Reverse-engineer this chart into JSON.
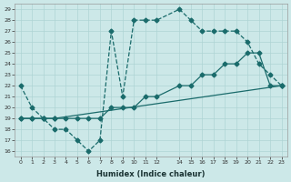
{
  "xlabel": "Humidex (Indice chaleur)",
  "bg_color": "#cce8e8",
  "line_color": "#1a6b6b",
  "grid_color": "#aed4d4",
  "xlim": [
    -0.5,
    23.5
  ],
  "ylim": [
    15.5,
    29.5
  ],
  "xticks": [
    0,
    1,
    2,
    3,
    4,
    5,
    6,
    7,
    8,
    9,
    10,
    11,
    12,
    14,
    15,
    16,
    17,
    18,
    19,
    20,
    21,
    22,
    23
  ],
  "yticks": [
    16,
    17,
    18,
    19,
    20,
    21,
    22,
    23,
    24,
    25,
    26,
    27,
    28,
    29
  ],
  "line1_x": [
    0,
    1,
    2,
    3,
    4,
    5,
    6,
    7,
    8,
    9,
    10,
    11,
    12,
    14,
    15,
    16,
    17,
    18,
    19,
    20,
    21,
    22,
    23
  ],
  "line1_y": [
    22,
    20,
    19,
    18,
    18,
    17,
    16,
    17,
    27,
    21,
    28,
    28,
    28,
    29,
    28,
    27,
    27,
    27,
    27,
    26,
    24,
    23,
    22
  ],
  "line2_x": [
    0,
    1,
    2,
    3,
    4,
    5,
    6,
    7,
    8,
    9,
    10,
    11,
    12,
    14,
    15,
    16,
    17,
    18,
    19,
    20,
    21,
    22,
    23
  ],
  "line2_y": [
    19,
    19,
    19,
    19,
    19,
    19,
    19,
    19,
    20,
    20,
    20,
    21,
    21,
    22,
    22,
    23,
    23,
    24,
    24,
    25,
    25,
    22,
    22
  ],
  "line3_x": [
    0,
    1,
    2,
    3,
    23
  ],
  "line3_y": [
    19,
    19,
    19,
    19,
    22
  ]
}
